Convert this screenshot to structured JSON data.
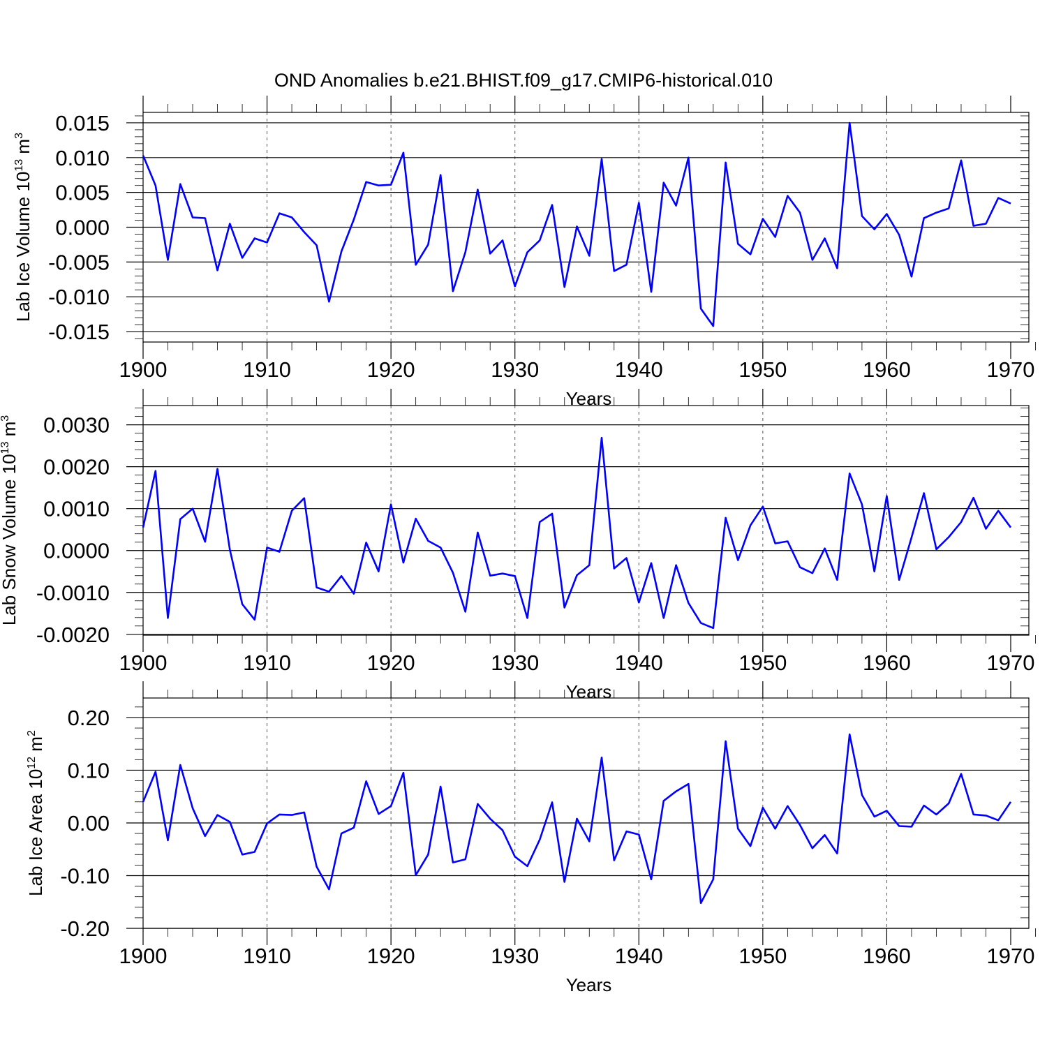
{
  "title": "OND Anomalies b.e21.BHIST.f09_g17.CMIP6-historical.010",
  "colors": {
    "series": "#0000ff",
    "axes": "#000000",
    "grid": "#555555"
  },
  "chart_data": [
    {
      "type": "line",
      "title": "OND Anomalies b.e21.BHIST.f09_g17.CMIP6-historical.010",
      "xlabel": "Years",
      "ylabel_base": "Lab Ice Volume 10",
      "ylabel_exp": "13",
      "ylabel_unit": " m",
      "ylabel_unit_exp": "3",
      "xlim": [
        1900,
        1970
      ],
      "ylim": [
        -0.0165,
        0.0165
      ],
      "xticks": [
        1900,
        1910,
        1920,
        1930,
        1940,
        1950,
        1960,
        1970
      ],
      "xtick_labels": [
        "1900",
        "1910",
        "1920",
        "1930",
        "1940",
        "1950",
        "1960",
        "1970"
      ],
      "yticks": [
        -0.015,
        -0.01,
        -0.005,
        0,
        0.005,
        0.01,
        0.015
      ],
      "ytick_labels": [
        "-0.015",
        "-0.010",
        "-0.005",
        "0.000",
        "0.005",
        "0.010",
        "0.015"
      ],
      "x_minor_step": 2,
      "y_minor_step": 0.001,
      "x": [
        1900,
        1901,
        1902,
        1903,
        1904,
        1905,
        1906,
        1907,
        1908,
        1909,
        1910,
        1911,
        1912,
        1913,
        1914,
        1915,
        1916,
        1917,
        1918,
        1919,
        1920,
        1921,
        1922,
        1923,
        1924,
        1925,
        1926,
        1927,
        1928,
        1929,
        1930,
        1931,
        1932,
        1933,
        1934,
        1935,
        1936,
        1937,
        1938,
        1939,
        1940,
        1941,
        1942,
        1943,
        1944,
        1945,
        1946,
        1947,
        1948,
        1949,
        1950,
        1951,
        1952,
        1953,
        1954,
        1955,
        1956,
        1957,
        1958,
        1959,
        1960,
        1961,
        1962,
        1963,
        1964,
        1965,
        1966,
        1967,
        1968,
        1969,
        1970
      ],
      "series": [
        {
          "name": "Lab Ice Volume",
          "values": [
            0.0103,
            0.006,
            -0.0047,
            0.0062,
            0.0014,
            0.0013,
            -0.0062,
            0.0005,
            -0.0044,
            -0.0016,
            -0.0022,
            0.002,
            0.0014,
            -0.0007,
            -0.0026,
            -0.0107,
            -0.0035,
            0.0011,
            0.0065,
            0.006,
            0.0061,
            0.0107,
            -0.0054,
            -0.0025,
            0.0075,
            -0.0092,
            -0.0036,
            0.0054,
            -0.0038,
            -0.0019,
            -0.0085,
            -0.0036,
            -0.0019,
            0.0032,
            -0.0086,
            0.0001,
            -0.0041,
            0.0098,
            -0.0063,
            -0.0054,
            0.0035,
            -0.0093,
            0.0064,
            0.0031,
            0.01,
            -0.0117,
            -0.0142,
            0.0093,
            -0.0024,
            -0.0039,
            0.0012,
            -0.0014,
            0.0045,
            0.0021,
            -0.0047,
            -0.0016,
            -0.0059,
            0.015,
            0.0016,
            -0.0003,
            0.0019,
            -0.0011,
            -0.0071,
            0.0013,
            0.0021,
            0.0027,
            0.0096,
            0.0002,
            0.0005,
            0.0042,
            0.0034
          ]
        }
      ]
    },
    {
      "type": "line",
      "xlabel": "Years",
      "ylabel_base": "Lab Snow Volume 10",
      "ylabel_exp": "13",
      "ylabel_unit": " m",
      "ylabel_unit_exp": "3",
      "xlim": [
        1900,
        1970
      ],
      "ylim": [
        -0.00202,
        0.00346
      ],
      "xticks": [
        1900,
        1910,
        1920,
        1930,
        1940,
        1950,
        1960,
        1970
      ],
      "xtick_labels": [
        "1900",
        "1910",
        "1920",
        "1930",
        "1940",
        "1950",
        "1960",
        "1970"
      ],
      "yticks": [
        -0.002,
        -0.001,
        0,
        0.001,
        0.002,
        0.003
      ],
      "ytick_labels": [
        "-0.0020",
        "-0.0010",
        "0.0000",
        "0.0010",
        "0.0020",
        "0.0030"
      ],
      "x_minor_step": 2,
      "y_minor_step": 0.0002,
      "x": [
        1900,
        1901,
        1902,
        1903,
        1904,
        1905,
        1906,
        1907,
        1908,
        1909,
        1910,
        1911,
        1912,
        1913,
        1914,
        1915,
        1916,
        1917,
        1918,
        1919,
        1920,
        1921,
        1922,
        1923,
        1924,
        1925,
        1926,
        1927,
        1928,
        1929,
        1930,
        1931,
        1932,
        1933,
        1934,
        1935,
        1936,
        1937,
        1938,
        1939,
        1940,
        1941,
        1942,
        1943,
        1944,
        1945,
        1946,
        1947,
        1948,
        1949,
        1950,
        1951,
        1952,
        1953,
        1954,
        1955,
        1956,
        1957,
        1958,
        1959,
        1960,
        1961,
        1962,
        1963,
        1964,
        1965,
        1966,
        1967,
        1968,
        1969,
        1970
      ],
      "series": [
        {
          "name": "Lab Snow Volume",
          "values": [
            0.00055,
            0.0019,
            -0.00161,
            0.00075,
            0.001,
            0.00021,
            0.00195,
            2e-05,
            -0.00128,
            -0.00165,
            7e-05,
            -3e-05,
            0.00095,
            0.00125,
            -0.00088,
            -0.00098,
            -0.00061,
            -0.00103,
            0.00019,
            -0.0005,
            0.0011,
            -0.00029,
            0.00076,
            0.00023,
            7e-05,
            -0.00053,
            -0.00146,
            0.00043,
            -0.0006,
            -0.00055,
            -0.00061,
            -0.00161,
            0.00068,
            0.00088,
            -0.00136,
            -0.00059,
            -0.00035,
            0.00269,
            -0.00043,
            -0.00018,
            -0.00124,
            -0.0003,
            -0.00161,
            -0.00035,
            -0.00125,
            -0.00173,
            -0.00185,
            0.00078,
            -0.00023,
            0.0006,
            0.00105,
            0.00017,
            0.00022,
            -0.0004,
            -0.00054,
            5e-05,
            -0.0007,
            0.00184,
            0.0011,
            -0.0005,
            0.0013,
            -0.0007,
            0.00031,
            0.00137,
            3e-05,
            0.00032,
            0.00068,
            0.00126,
            0.00052,
            0.00095,
            0.00055
          ]
        }
      ]
    },
    {
      "type": "line",
      "xlabel": "Years",
      "ylabel_base": "Lab Ice Area 10",
      "ylabel_exp": "12",
      "ylabel_unit": " m",
      "ylabel_unit_exp": "2",
      "xlim": [
        1900,
        1970
      ],
      "ylim": [
        -0.2,
        0.237
      ],
      "xticks": [
        1900,
        1910,
        1920,
        1930,
        1940,
        1950,
        1960,
        1970
      ],
      "xtick_labels": [
        "1900",
        "1910",
        "1920",
        "1930",
        "1940",
        "1950",
        "1960",
        "1970"
      ],
      "yticks": [
        -0.2,
        -0.1,
        0,
        0.1,
        0.2
      ],
      "ytick_labels": [
        "-0.20",
        "-0.10",
        "0.00",
        "0.10",
        "0.20"
      ],
      "x_minor_step": 2,
      "y_minor_step": 0.02,
      "x": [
        1900,
        1901,
        1902,
        1903,
        1904,
        1905,
        1906,
        1907,
        1908,
        1909,
        1910,
        1911,
        1912,
        1913,
        1914,
        1915,
        1916,
        1917,
        1918,
        1919,
        1920,
        1921,
        1922,
        1923,
        1924,
        1925,
        1926,
        1927,
        1928,
        1929,
        1930,
        1931,
        1932,
        1933,
        1934,
        1935,
        1936,
        1937,
        1938,
        1939,
        1940,
        1941,
        1942,
        1943,
        1944,
        1945,
        1946,
        1947,
        1948,
        1949,
        1950,
        1951,
        1952,
        1953,
        1954,
        1955,
        1956,
        1957,
        1958,
        1959,
        1960,
        1961,
        1962,
        1963,
        1964,
        1965,
        1966,
        1967,
        1968,
        1969,
        1970
      ],
      "series": [
        {
          "name": "Lab Ice Area",
          "values": [
            0.04,
            0.097,
            -0.033,
            0.11,
            0.028,
            -0.025,
            0.015,
            0.002,
            -0.06,
            -0.055,
            -0.001,
            0.016,
            0.015,
            0.02,
            -0.083,
            -0.126,
            -0.02,
            -0.009,
            0.079,
            0.017,
            0.032,
            0.095,
            -0.099,
            -0.06,
            0.069,
            -0.075,
            -0.069,
            0.036,
            0.008,
            -0.014,
            -0.064,
            -0.082,
            -0.032,
            0.039,
            -0.112,
            0.008,
            -0.035,
            0.124,
            -0.071,
            -0.016,
            -0.022,
            -0.107,
            0.042,
            0.06,
            0.074,
            -0.152,
            -0.107,
            0.155,
            -0.011,
            -0.044,
            0.029,
            -0.011,
            0.032,
            -0.004,
            -0.048,
            -0.023,
            -0.058,
            0.168,
            0.053,
            0.012,
            0.023,
            -0.006,
            -0.007,
            0.033,
            0.016,
            0.037,
            0.093,
            0.016,
            0.014,
            0.005,
            0.04
          ]
        }
      ]
    }
  ]
}
